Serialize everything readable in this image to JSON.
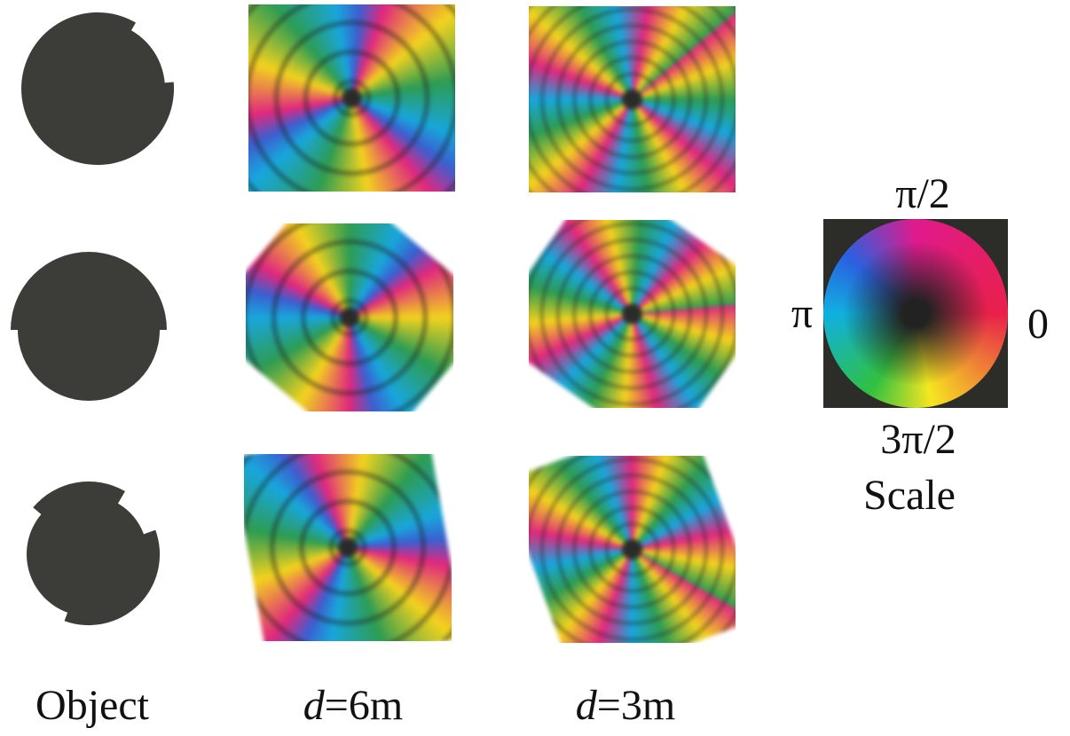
{
  "columns": [
    {
      "label": "Object"
    },
    {
      "variable": "d",
      "label": "=6m"
    },
    {
      "variable": "d",
      "label": "=3m"
    }
  ],
  "scale": {
    "top": "π/2",
    "left": "π",
    "right": "0",
    "bottom": "3π/2",
    "title": "Scale"
  }
}
